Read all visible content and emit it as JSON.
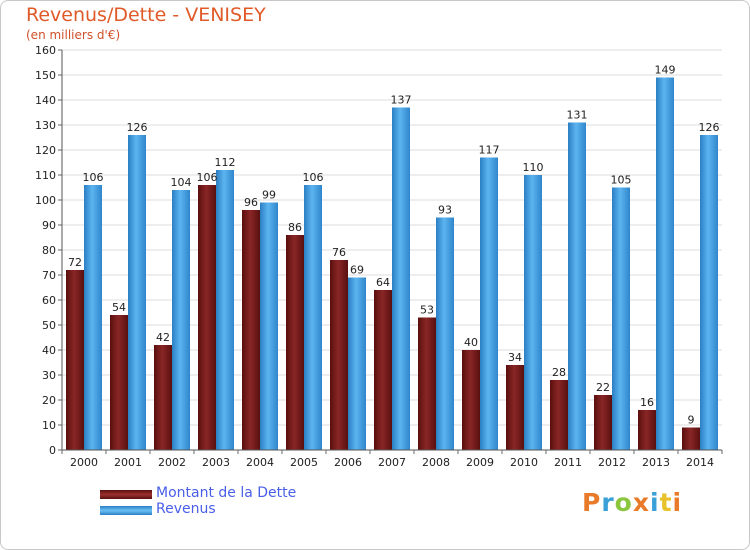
{
  "title": "Revenus/Dette - VENISEY",
  "subtitle": "(en milliers d'€)",
  "colors": {
    "dette": "#7a1a1a",
    "revenus": "#3b9ae0",
    "title": "#e05a28",
    "legend_text": "#4a5ee8"
  },
  "legend": {
    "dette_label": "Montant de la Dette",
    "revenus_label": "Revenus"
  },
  "logo": {
    "text": "Proxiti",
    "letter_colors": [
      "#e87a2a",
      "#3aa0d8",
      "#8cc63f",
      "#e87a2a",
      "#3aa0d8",
      "#e8c22a",
      "#e87a2a"
    ]
  },
  "chart_data": {
    "type": "bar",
    "title": "Revenus/Dette - VENISEY",
    "subtitle": "(en milliers d'€)",
    "categories": [
      "2000",
      "2001",
      "2002",
      "2003",
      "2004",
      "2005",
      "2006",
      "2007",
      "2008",
      "2009",
      "2010",
      "2011",
      "2012",
      "2013",
      "2014"
    ],
    "series": [
      {
        "name": "Montant de la Dette",
        "values": [
          72,
          54,
          42,
          106,
          96,
          86,
          76,
          64,
          53,
          40,
          34,
          28,
          22,
          16,
          9
        ]
      },
      {
        "name": "Revenus",
        "values": [
          106,
          126,
          104,
          112,
          99,
          106,
          69,
          137,
          93,
          117,
          110,
          131,
          105,
          149,
          126
        ]
      }
    ],
    "ylim": [
      0,
      160
    ],
    "yticks": [
      0,
      10,
      20,
      30,
      40,
      50,
      60,
      70,
      80,
      90,
      100,
      110,
      120,
      130,
      140,
      150,
      160
    ],
    "grid": true,
    "legend_position": "bottom-left"
  }
}
